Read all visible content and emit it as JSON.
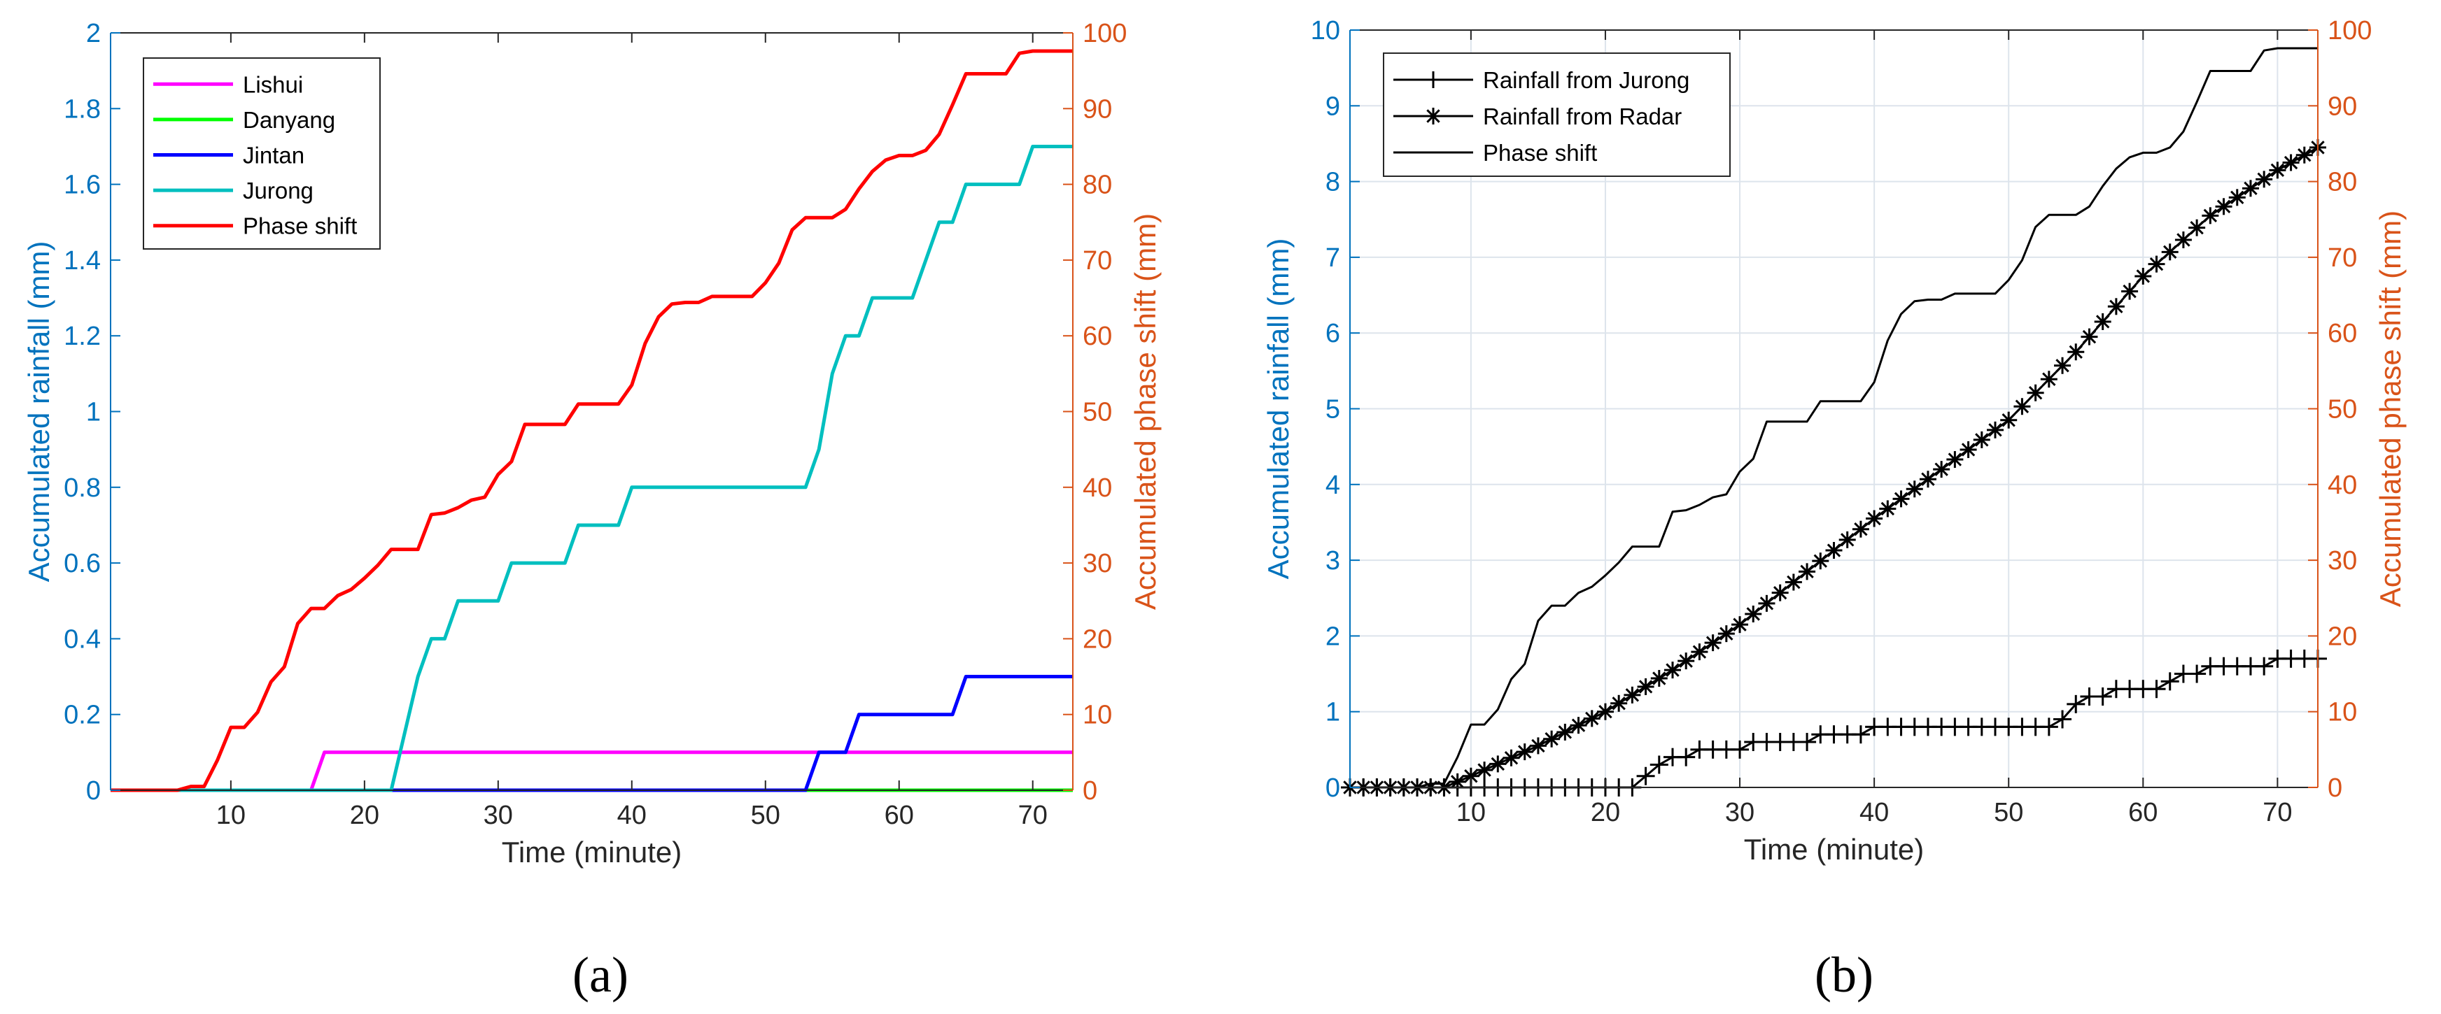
{
  "chart_data": [
    {
      "type": "line",
      "panel_label": "(a)",
      "xlabel": "Time (minute)",
      "ylabel_left": "Accumulated rainfall (mm)",
      "ylabel_right": "Accumulated phase shift (mm)",
      "xlim": [
        1,
        73
      ],
      "ylim_left": [
        0,
        2
      ],
      "ylim_right": [
        0,
        100
      ],
      "xticks": [
        10,
        20,
        30,
        40,
        50,
        60,
        70
      ],
      "yticks_left": [
        "0",
        "0.2",
        "0.4",
        "0.6",
        "0.8",
        "1",
        "1.2",
        "1.4",
        "1.6",
        "1.8",
        "2"
      ],
      "yticks_right": [
        "0",
        "10",
        "20",
        "30",
        "40",
        "50",
        "60",
        "70",
        "80",
        "90",
        "100"
      ],
      "grid": false,
      "legend_position": "top-left",
      "left_axis_color": "#0072BD",
      "right_axis_color": "#D95319",
      "series": [
        {
          "name": "Lishui",
          "axis": "left",
          "color": "#FF00FF",
          "x": [
            1,
            16,
            17,
            73
          ],
          "y": [
            0,
            0,
            0.1,
            0.1
          ]
        },
        {
          "name": "Danyang",
          "axis": "left",
          "color": "#00FF00",
          "x": [
            53,
            73
          ],
          "y": [
            0,
            0
          ]
        },
        {
          "name": "Jintan",
          "axis": "left",
          "color": "#0000FF",
          "x": [
            1,
            53,
            54,
            56,
            57,
            64,
            65,
            73
          ],
          "y": [
            0,
            0,
            0.1,
            0.1,
            0.2,
            0.2,
            0.3,
            0.3
          ]
        },
        {
          "name": "Jurong",
          "axis": "left",
          "color": "#00BFBF",
          "x": [
            1,
            22,
            23,
            24,
            25,
            26,
            27,
            30,
            31,
            35,
            36,
            39,
            40,
            53,
            54,
            55,
            56,
            57,
            58,
            61,
            62,
            63,
            64,
            65,
            69,
            70,
            73
          ],
          "y": [
            0,
            0,
            0.15,
            0.3,
            0.4,
            0.4,
            0.5,
            0.5,
            0.6,
            0.6,
            0.7,
            0.7,
            0.8,
            0.8,
            0.9,
            1.1,
            1.2,
            1.2,
            1.3,
            1.3,
            1.4,
            1.5,
            1.5,
            1.6,
            1.6,
            1.7,
            1.7
          ]
        },
        {
          "name": "Phase shift",
          "axis": "right",
          "color": "#FF0000",
          "x": [
            1,
            6,
            7,
            8,
            9,
            10,
            11,
            12,
            13,
            14,
            15,
            16,
            17,
            18,
            19,
            20,
            21,
            22,
            23,
            24,
            25,
            26,
            27,
            28,
            29,
            30,
            31,
            32,
            33,
            34,
            35,
            36,
            37,
            38,
            39,
            40,
            41,
            42,
            43,
            44,
            45,
            46,
            47,
            48,
            49,
            50,
            51,
            52,
            53,
            54,
            55,
            56,
            57,
            58,
            59,
            60,
            61,
            62,
            63,
            64,
            65,
            66,
            67,
            68,
            69,
            70,
            71,
            72,
            73
          ],
          "y": [
            0,
            0,
            0.5,
            0.5,
            4,
            8.3,
            8.3,
            10.3,
            14.3,
            16.3,
            22,
            24,
            24,
            25.7,
            26.5,
            28,
            29.7,
            31.8,
            31.8,
            31.8,
            36.4,
            36.6,
            37.3,
            38.3,
            38.7,
            41.7,
            43.4,
            48.3,
            48.3,
            48.3,
            48.3,
            51,
            51,
            51,
            51,
            53.5,
            59,
            62.5,
            64.2,
            64.4,
            64.4,
            65.2,
            65.2,
            65.2,
            65.2,
            67,
            69.6,
            74,
            75.6,
            75.6,
            75.6,
            76.7,
            79.4,
            81.7,
            83.2,
            83.8,
            83.8,
            84.5,
            86.6,
            90.5,
            94.6,
            94.6,
            94.6,
            94.6,
            97.3,
            97.6,
            97.6,
            97.6,
            97.6
          ]
        }
      ]
    },
    {
      "type": "line",
      "panel_label": "(b)",
      "xlabel": "Time (minute)",
      "ylabel_left": "Accumulated rainfall (mm)",
      "ylabel_right": "Accumulated phase shift (mm)",
      "xlim": [
        1,
        73
      ],
      "ylim_left": [
        0,
        10
      ],
      "ylim_right": [
        0,
        100
      ],
      "xticks": [
        10,
        20,
        30,
        40,
        50,
        60,
        70
      ],
      "yticks_left": [
        "0",
        "1",
        "2",
        "3",
        "4",
        "5",
        "6",
        "7",
        "8",
        "9",
        "10"
      ],
      "yticks_right": [
        "0",
        "10",
        "20",
        "30",
        "40",
        "50",
        "60",
        "70",
        "80",
        "90",
        "100"
      ],
      "grid": true,
      "legend_position": "top-left",
      "left_axis_color": "#0072BD",
      "right_axis_color": "#D95319",
      "series": [
        {
          "name": "Rainfall from Jurong",
          "axis": "left",
          "color": "#000000",
          "marker": "plus",
          "x": [
            1,
            22,
            23,
            24,
            25,
            26,
            27,
            30,
            31,
            35,
            36,
            39,
            40,
            53,
            54,
            55,
            56,
            57,
            58,
            61,
            62,
            63,
            64,
            65,
            69,
            70,
            73
          ],
          "y": [
            0,
            0,
            0.15,
            0.3,
            0.4,
            0.4,
            0.5,
            0.5,
            0.6,
            0.6,
            0.7,
            0.7,
            0.8,
            0.8,
            0.9,
            1.1,
            1.2,
            1.2,
            1.3,
            1.3,
            1.4,
            1.5,
            1.5,
            1.6,
            1.6,
            1.7,
            1.7
          ]
        },
        {
          "name": "Rainfall from Radar",
          "axis": "left",
          "color": "#000000",
          "marker": "asterisk",
          "x": [
            1,
            8,
            10,
            15,
            20,
            25,
            30,
            35,
            40,
            45,
            50,
            55,
            60,
            65,
            70,
            73
          ],
          "y": [
            0,
            0,
            0.15,
            0.55,
            1.0,
            1.55,
            2.15,
            2.85,
            3.55,
            4.2,
            4.85,
            5.75,
            6.75,
            7.55,
            8.15,
            8.45
          ]
        },
        {
          "name": "Phase shift",
          "axis": "right",
          "color": "#000000",
          "marker": "none",
          "x": [
            1,
            6,
            7,
            8,
            9,
            10,
            11,
            12,
            13,
            14,
            15,
            16,
            17,
            18,
            19,
            20,
            21,
            22,
            23,
            24,
            25,
            26,
            27,
            28,
            29,
            30,
            31,
            32,
            33,
            34,
            35,
            36,
            37,
            38,
            39,
            40,
            41,
            42,
            43,
            44,
            45,
            46,
            47,
            48,
            49,
            50,
            51,
            52,
            53,
            54,
            55,
            56,
            57,
            58,
            59,
            60,
            61,
            62,
            63,
            64,
            65,
            66,
            67,
            68,
            69,
            70,
            71,
            72,
            73
          ],
          "y": [
            0,
            0,
            0.5,
            0.5,
            4,
            8.3,
            8.3,
            10.3,
            14.3,
            16.3,
            22,
            24,
            24,
            25.7,
            26.5,
            28,
            29.7,
            31.8,
            31.8,
            31.8,
            36.4,
            36.6,
            37.3,
            38.3,
            38.7,
            41.7,
            43.4,
            48.3,
            48.3,
            48.3,
            48.3,
            51,
            51,
            51,
            51,
            53.5,
            59,
            62.5,
            64.2,
            64.4,
            64.4,
            65.2,
            65.2,
            65.2,
            65.2,
            67,
            69.6,
            74,
            75.6,
            75.6,
            75.6,
            76.7,
            79.4,
            81.7,
            83.2,
            83.8,
            83.8,
            84.5,
            86.6,
            90.5,
            94.6,
            94.6,
            94.6,
            94.6,
            97.3,
            97.6,
            97.6,
            97.6,
            97.6
          ]
        }
      ]
    }
  ]
}
